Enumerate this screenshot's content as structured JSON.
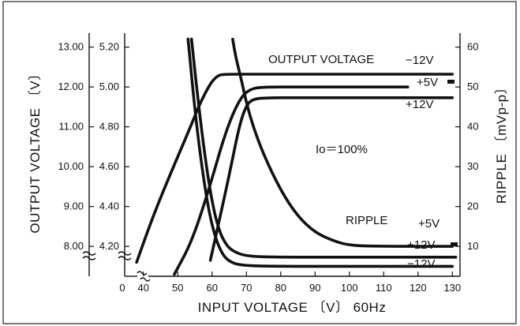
{
  "chart_data": {
    "type": "line",
    "xlabel": "INPUT VOLTAGE 〔V〕 60Hz",
    "ylabel_left": "OUTPUT VOLTAGE 〔V〕",
    "ylabel_right": "RIPPLE 〔mVp-p〕",
    "annotation": "Io＝100%",
    "annotation_output": "OUTPUT VOLTAGE",
    "annotation_ripple": "RIPPLE",
    "x_ticks": [
      "0",
      "40",
      "50",
      "60",
      "70",
      "80",
      "90",
      "100",
      "110",
      "120",
      "130"
    ],
    "x_range": [
      35,
      132
    ],
    "y_left_outer": {
      "ticks": [
        "8.00",
        "9.00",
        "10.00",
        "11.00",
        "12.00",
        "13.00"
      ],
      "range": [
        7.25,
        13.35
      ]
    },
    "y_left_inner": {
      "ticks": [
        "4.20",
        "4.40",
        "4.60",
        "4.80",
        "5.00",
        "5.20"
      ],
      "range": [
        4.05,
        5.27
      ]
    },
    "y_right": {
      "ticks": [
        "10",
        "20",
        "30",
        "40",
        "50",
        "60"
      ],
      "range": [
        2.5,
        63.5
      ]
    },
    "series": [
      {
        "name": "−12V",
        "group": "output",
        "axis": "left_outer",
        "x": [
          38,
          43,
          48,
          53,
          57,
          61,
          65,
          70,
          80,
          100,
          130
        ],
        "y": [
          7.6,
          8.8,
          9.85,
          10.85,
          11.7,
          12.3,
          12.32,
          12.32,
          12.32,
          12.32,
          12.32
        ]
      },
      {
        "name": "+5V",
        "group": "output",
        "axis": "left_inner",
        "x": [
          49,
          54,
          59,
          64,
          68,
          71,
          75,
          85,
          100,
          117
        ],
        "y": [
          4.06,
          4.22,
          4.48,
          4.78,
          4.94,
          4.99,
          5.0,
          5.0,
          5.0,
          5.0
        ]
      },
      {
        "name": "+12V",
        "group": "output",
        "axis": "left_outer",
        "x": [
          59.5,
          62.5,
          65.5,
          68,
          70,
          72,
          76,
          85,
          100,
          130
        ],
        "y": [
          7.65,
          8.8,
          10.0,
          11.05,
          11.55,
          11.7,
          11.73,
          11.73,
          11.73,
          11.73
        ]
      },
      {
        "name": "+5V",
        "group": "ripple",
        "axis": "right",
        "x": [
          66,
          67,
          68.5,
          70,
          72,
          75,
          80,
          85,
          90,
          95,
          100,
          110,
          130
        ],
        "y": [
          62,
          57,
          52,
          46,
          40,
          33,
          24,
          17.5,
          13.5,
          11.5,
          10.2,
          10.0,
          10.0
        ]
      },
      {
        "name": "+12V",
        "group": "ripple",
        "axis": "right",
        "x": [
          54,
          56,
          58,
          60,
          62,
          64,
          66,
          70,
          80,
          100,
          131
        ],
        "y": [
          62,
          46,
          32,
          21,
          14,
          10.5,
          8.8,
          7.5,
          7.3,
          7.3,
          7.3
        ]
      },
      {
        "name": "−12V",
        "group": "ripple",
        "axis": "right",
        "x": [
          53,
          55,
          57,
          59,
          61,
          63,
          65,
          68,
          75,
          100,
          130
        ],
        "y": [
          62,
          44,
          30,
          19,
          12,
          8.0,
          6.2,
          5.3,
          5.0,
          5.0,
          5.0
        ]
      }
    ],
    "labels": {
      "out_m12": "−12V",
      "out_p5": "+5V",
      "out_p12": "+12V",
      "rip_p5": "+5V",
      "rip_p12": "+12V",
      "rip_m12": "−12V"
    },
    "grid": false
  }
}
